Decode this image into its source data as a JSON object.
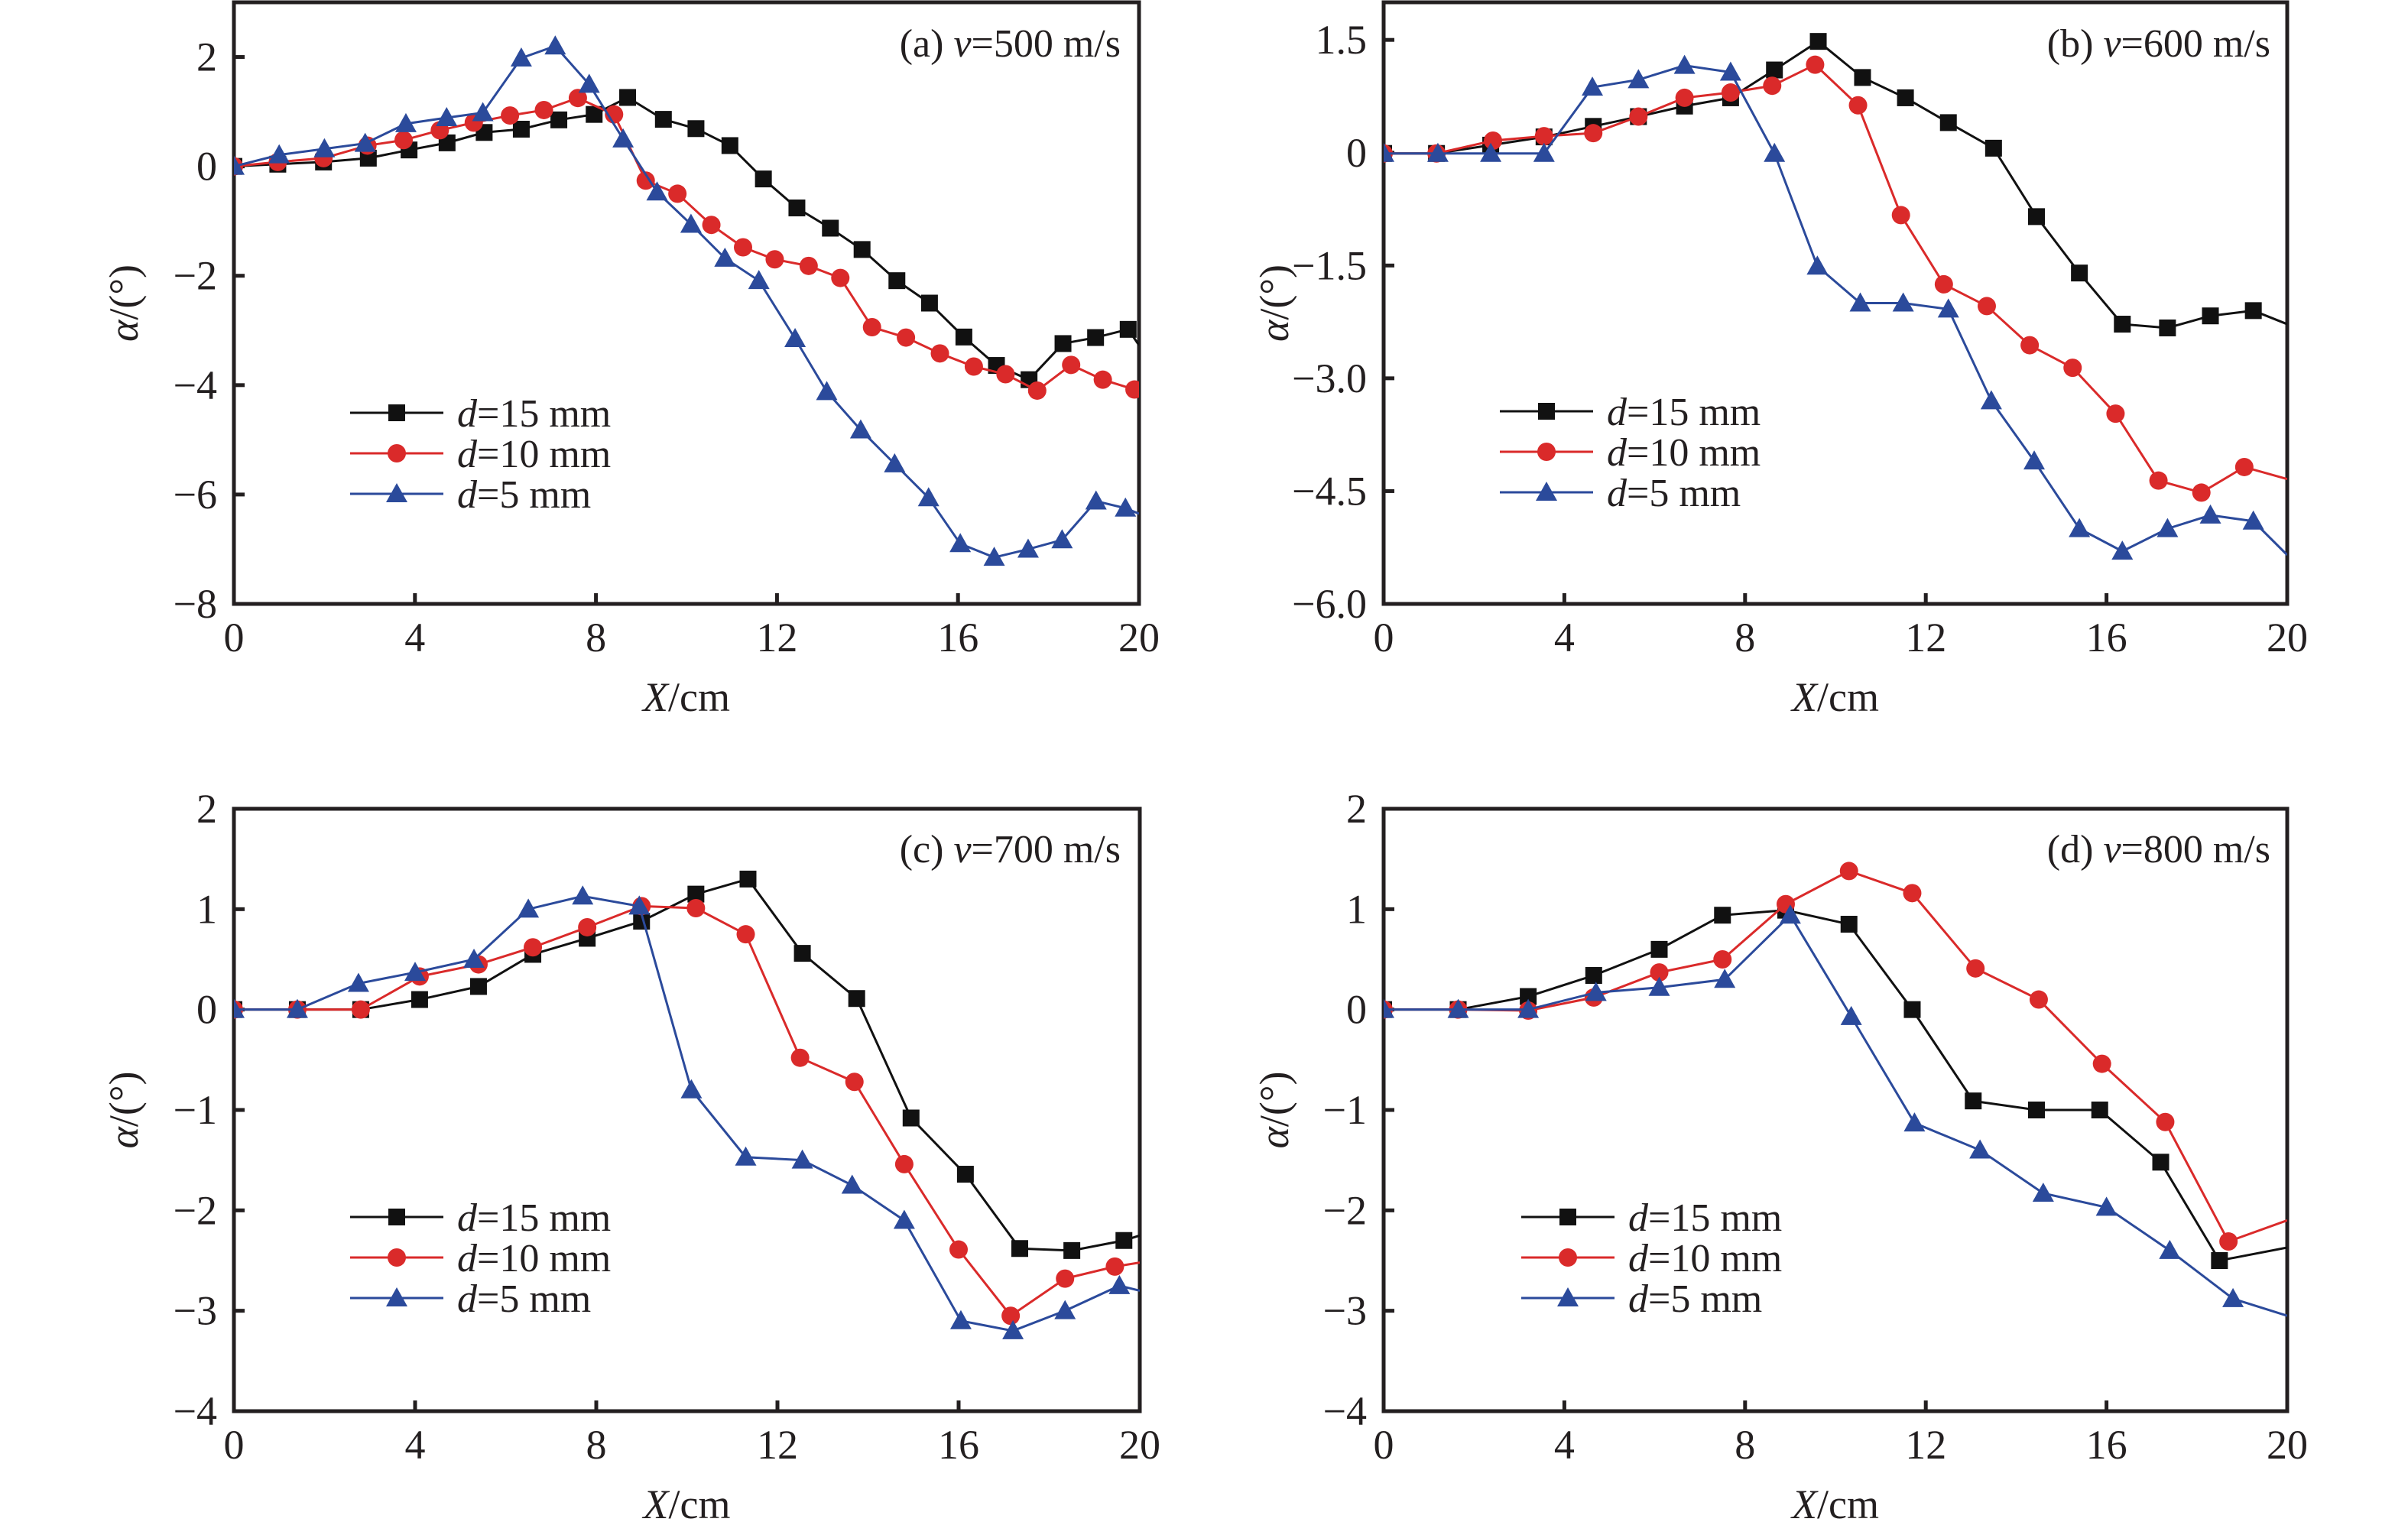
{
  "figure": {
    "x_axis_label": {
      "italic": "X",
      "rest": "/cm"
    },
    "y_axis_label": {
      "italic": "α",
      "rest": "/(°)"
    },
    "legend": [
      {
        "italic": "d",
        "rest": "=15 mm",
        "series": "d=15 mm"
      },
      {
        "italic": "d",
        "rest": "=10 mm",
        "series": "d=10 mm"
      },
      {
        "italic": "d",
        "rest": "=5 mm",
        "series": "d=5 mm"
      }
    ]
  },
  "series_styles": {
    "d=15 mm": {
      "color": "#111111",
      "marker": "square"
    },
    "d=10 mm": {
      "color": "#da2a2a",
      "marker": "circle"
    },
    "d=5 mm": {
      "color": "#2b4a9b",
      "marker": "triangle"
    }
  },
  "chart_data": [
    {
      "type": "line",
      "panel": "a",
      "title": "(a) v=500 m/s",
      "title_parts": {
        "prefix": "(a) ",
        "italic": "v",
        "rest": "=500 m/s"
      },
      "xlabel": "X/cm",
      "ylabel": "α/(°)",
      "xlim": [
        0,
        20
      ],
      "ylim": [
        -8,
        3
      ],
      "xticks": [
        0,
        4,
        8,
        12,
        16,
        20
      ],
      "yticks": [
        2,
        0,
        -2,
        -4,
        -6,
        -8
      ],
      "ytick_labels": [
        "2",
        "0",
        "−2",
        "−4",
        "−6",
        "−8"
      ],
      "grid": false,
      "legend_position": "lower-left",
      "series": [
        {
          "name": "d=15 mm",
          "x": [
            0,
            0.97,
            1.98,
            2.97,
            3.87,
            4.71,
            5.53,
            6.35,
            7.18,
            7.96,
            8.7,
            9.49,
            10.21,
            10.96,
            11.7,
            12.44,
            13.18,
            13.88,
            14.65,
            15.37,
            16.13,
            16.85,
            17.57,
            18.32,
            19.04,
            19.76,
            20
          ],
          "y": [
            0,
            0.04,
            0.08,
            0.15,
            0.3,
            0.43,
            0.62,
            0.68,
            0.85,
            0.95,
            1.26,
            0.86,
            0.69,
            0.38,
            -0.23,
            -0.76,
            -1.13,
            -1.52,
            -2.09,
            -2.5,
            -3.12,
            -3.64,
            -3.9,
            -3.24,
            -3.13,
            -2.98,
            -3.27
          ]
        },
        {
          "name": "d=10 mm",
          "x": [
            0,
            0.97,
            1.98,
            2.95,
            3.75,
            4.55,
            5.3,
            6.1,
            6.85,
            7.6,
            8.4,
            9.1,
            9.8,
            10.55,
            11.25,
            11.95,
            12.7,
            13.4,
            14.1,
            14.85,
            15.6,
            16.35,
            17.05,
            17.75,
            18.5,
            19.2,
            19.9,
            20
          ],
          "y": [
            0,
            0.08,
            0.15,
            0.38,
            0.48,
            0.66,
            0.8,
            0.93,
            1.03,
            1.25,
            0.95,
            -0.26,
            -0.5,
            -1.07,
            -1.48,
            -1.7,
            -1.82,
            -2.04,
            -2.94,
            -3.13,
            -3.42,
            -3.66,
            -3.8,
            -4.1,
            -3.63,
            -3.9,
            -4.08,
            -4.1
          ]
        },
        {
          "name": "d=5 mm",
          "x": [
            0,
            1.0,
            2.0,
            2.9,
            3.8,
            4.7,
            5.5,
            6.35,
            7.1,
            7.85,
            8.6,
            9.35,
            10.1,
            10.85,
            11.6,
            12.4,
            13.1,
            13.85,
            14.6,
            15.35,
            16.05,
            16.8,
            17.55,
            18.3,
            19.05,
            19.7,
            20
          ],
          "y": [
            0,
            0.21,
            0.32,
            0.42,
            0.78,
            0.89,
            0.98,
            1.98,
            2.2,
            1.5,
            0.5,
            -0.47,
            -1.06,
            -1.68,
            -2.09,
            -3.15,
            -4.12,
            -4.82,
            -5.44,
            -6.06,
            -6.9,
            -7.15,
            -7.0,
            -6.83,
            -6.12,
            -6.25,
            -6.35
          ]
        }
      ]
    },
    {
      "type": "line",
      "panel": "b",
      "title": "(b) v=600 m/s",
      "title_parts": {
        "prefix": "(b) ",
        "italic": "v",
        "rest": "=600 m/s"
      },
      "xlabel": "X/cm",
      "ylabel": "α/(°)",
      "xlim": [
        0,
        20
      ],
      "ylim": [
        -6,
        2
      ],
      "xticks": [
        0,
        4,
        8,
        12,
        16,
        20
      ],
      "yticks": [
        1.5,
        0,
        -1.5,
        -3.0,
        -4.5,
        -6.0
      ],
      "ytick_labels": [
        "1.5",
        "0",
        "−1.5",
        "−3.0",
        "−4.5",
        "−6.0"
      ],
      "grid": false,
      "legend_position": "lower-left",
      "series": [
        {
          "name": "d=15 mm",
          "x": [
            0,
            1.17,
            2.37,
            3.55,
            4.64,
            5.64,
            6.66,
            7.68,
            8.65,
            9.62,
            10.6,
            11.55,
            12.5,
            13.5,
            14.45,
            15.4,
            16.35,
            17.35,
            18.3,
            19.25,
            20
          ],
          "y": [
            -0.01,
            -0.01,
            0.1,
            0.21,
            0.35,
            0.48,
            0.62,
            0.73,
            1.1,
            1.48,
            1.0,
            0.73,
            0.4,
            0.06,
            -0.85,
            -1.6,
            -2.28,
            -2.33,
            -2.17,
            -2.1,
            -2.28
          ]
        },
        {
          "name": "d=10 mm",
          "x": [
            0,
            1.17,
            2.42,
            3.55,
            4.64,
            5.64,
            6.66,
            7.68,
            8.6,
            9.55,
            10.5,
            11.45,
            12.4,
            13.35,
            14.3,
            15.25,
            16.2,
            17.15,
            18.1,
            19.05,
            20
          ],
          "y": [
            -0.01,
            -0.01,
            0.16,
            0.22,
            0.26,
            0.48,
            0.73,
            0.8,
            0.89,
            1.17,
            0.63,
            -0.83,
            -1.75,
            -2.04,
            -2.56,
            -2.86,
            -3.47,
            -4.36,
            -4.52,
            -4.18,
            -4.34
          ]
        },
        {
          "name": "d=5 mm",
          "x": [
            0,
            1.2,
            2.37,
            3.55,
            4.62,
            5.64,
            6.66,
            7.68,
            8.65,
            9.6,
            10.55,
            11.5,
            12.5,
            13.45,
            14.4,
            15.4,
            16.35,
            17.35,
            18.3,
            19.25,
            20
          ],
          "y": [
            -0.01,
            -0.01,
            -0.01,
            -0.01,
            0.87,
            0.97,
            1.16,
            1.07,
            -0.01,
            -1.51,
            -2.0,
            -2.0,
            -2.08,
            -3.3,
            -4.1,
            -5.0,
            -5.3,
            -5.0,
            -4.82,
            -4.9,
            -5.35
          ]
        }
      ]
    },
    {
      "type": "line",
      "panel": "c",
      "title": "(c) v=700 m/s",
      "title_parts": {
        "prefix": "(c) ",
        "italic": "v",
        "rest": "=700 m/s"
      },
      "xlabel": "X/cm",
      "ylabel": "α/(°)",
      "xlim": [
        0,
        20
      ],
      "ylim": [
        -4,
        2
      ],
      "xticks": [
        0,
        4,
        8,
        12,
        16,
        20
      ],
      "yticks": [
        2,
        1,
        0,
        -1,
        -2,
        -3,
        -4
      ],
      "ytick_labels": [
        "2",
        "1",
        "0",
        "−1",
        "−2",
        "−3",
        "−4"
      ],
      "grid": false,
      "legend_position": "lower-left",
      "series": [
        {
          "name": "d=15 mm",
          "x": [
            0,
            1.4,
            2.8,
            4.1,
            5.4,
            6.6,
            7.8,
            9.0,
            10.2,
            11.35,
            12.55,
            13.75,
            14.95,
            16.15,
            17.35,
            18.5,
            19.65,
            20
          ],
          "y": [
            0,
            0,
            0,
            0.1,
            0.23,
            0.55,
            0.71,
            0.88,
            1.15,
            1.3,
            0.56,
            0.11,
            -1.08,
            -1.64,
            -2.38,
            -2.4,
            -2.3,
            -2.25
          ]
        },
        {
          "name": "d=10 mm",
          "x": [
            0,
            1.4,
            2.8,
            4.1,
            5.4,
            6.6,
            7.8,
            9.0,
            10.2,
            11.3,
            12.5,
            13.7,
            14.8,
            16.0,
            17.15,
            18.35,
            19.45,
            20
          ],
          "y": [
            0,
            0,
            0,
            0.33,
            0.45,
            0.62,
            0.82,
            1.03,
            1.01,
            0.75,
            -0.48,
            -0.72,
            -1.54,
            -2.39,
            -3.05,
            -2.68,
            -2.56,
            -2.52
          ]
        },
        {
          "name": "d=5 mm",
          "x": [
            0,
            1.4,
            2.75,
            4.0,
            5.3,
            6.5,
            7.7,
            8.95,
            10.1,
            11.3,
            12.55,
            13.65,
            14.8,
            16.05,
            17.2,
            18.35,
            19.55,
            20
          ],
          "y": [
            0,
            0,
            0.26,
            0.37,
            0.5,
            1.0,
            1.13,
            1.03,
            -0.8,
            -1.47,
            -1.5,
            -1.75,
            -2.1,
            -3.1,
            -3.2,
            -3.0,
            -2.75,
            -2.8
          ]
        }
      ]
    },
    {
      "type": "line",
      "panel": "d",
      "title": "(d) v=800 m/s",
      "title_parts": {
        "prefix": "(d) ",
        "italic": "v",
        "rest": "=800 m/s"
      },
      "xlabel": "X/cm",
      "ylabel": "α/(°)",
      "xlim": [
        0,
        20
      ],
      "ylim": [
        -4,
        2
      ],
      "xticks": [
        0,
        4,
        8,
        12,
        16,
        20
      ],
      "yticks": [
        2,
        1,
        0,
        -1,
        -2,
        -3,
        -4
      ],
      "ytick_labels": [
        "2",
        "1",
        "0",
        "−1",
        "−2",
        "−3",
        "−4"
      ],
      "grid": false,
      "legend_position": "lower-left",
      "series": [
        {
          "name": "d=15 mm",
          "x": [
            0,
            1.65,
            3.2,
            4.65,
            6.1,
            7.5,
            8.9,
            10.3,
            11.7,
            13.05,
            14.45,
            15.85,
            17.2,
            18.5,
            20
          ],
          "y": [
            0,
            0,
            0.13,
            0.34,
            0.6,
            0.94,
            0.99,
            0.85,
            0.0,
            -0.91,
            -1.0,
            -1.0,
            -1.52,
            -2.5,
            -2.37
          ]
        },
        {
          "name": "d=10 mm",
          "x": [
            0,
            1.65,
            3.2,
            4.65,
            6.1,
            7.5,
            8.9,
            10.3,
            11.7,
            13.1,
            14.5,
            15.9,
            17.3,
            18.7,
            20
          ],
          "y": [
            0,
            0,
            -0.01,
            0.12,
            0.37,
            0.5,
            1.05,
            1.38,
            1.16,
            0.41,
            0.1,
            -0.54,
            -1.12,
            -2.31,
            -2.1
          ]
        },
        {
          "name": "d=5 mm",
          "x": [
            0,
            1.65,
            3.2,
            4.7,
            6.1,
            7.55,
            9.0,
            10.35,
            11.75,
            13.2,
            14.6,
            16.0,
            17.4,
            18.8,
            20
          ],
          "y": [
            0,
            0,
            0,
            0.17,
            0.22,
            0.3,
            0.94,
            -0.07,
            -1.13,
            -1.4,
            -1.83,
            -1.97,
            -2.4,
            -2.88,
            -3.05
          ]
        }
      ]
    }
  ]
}
